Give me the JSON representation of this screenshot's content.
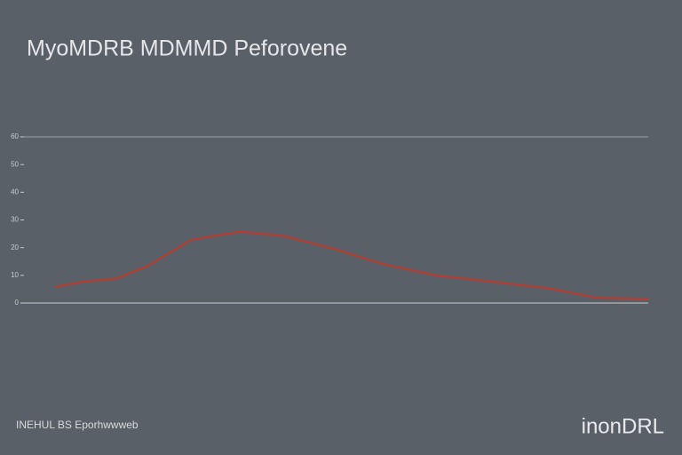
{
  "chart_data": {
    "type": "line",
    "title": "MyoMDRB MDMMD Peforovene",
    "x": [
      5.2,
      9.9,
      14.9,
      19.9,
      27,
      34.8,
      41.8,
      49.6,
      57.4,
      66,
      75.9,
      84.4,
      91.5,
      100
    ],
    "series": [
      {
        "color": "#c0392b",
        "values": [
          5.8,
          7.7,
          8.7,
          13.2,
          22.8,
          25.7,
          24.1,
          19.6,
          14.1,
          9.9,
          7.4,
          5.1,
          1.9,
          1.3
        ]
      }
    ],
    "xlim": [
      0,
      100
    ],
    "ylim": [
      0,
      60
    ],
    "yticks": [
      0,
      10,
      20,
      30,
      40,
      50,
      60
    ],
    "grid": false,
    "footer_left": "INEHUL BS Eporhwwweb",
    "footer_right": "inonDRL"
  }
}
